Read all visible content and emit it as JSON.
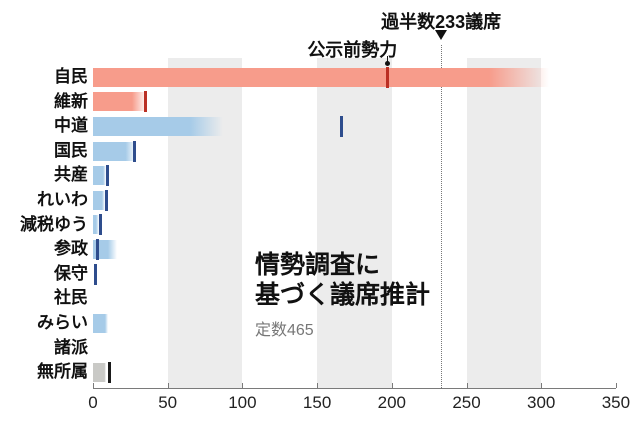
{
  "annotations": {
    "majority_label": "過半数233議席",
    "pre_election_label": "公示前勢力"
  },
  "title": {
    "line1": "情勢調査に",
    "line2": "基づく議席推計",
    "subtitle": "定数465"
  },
  "chart_data": {
    "type": "bar",
    "orientation": "horizontal",
    "title": "情勢調査に基づく議席推計",
    "subtitle": "定数465",
    "xlim": [
      0,
      350
    ],
    "x_ticks": [
      0,
      50,
      100,
      150,
      200,
      250,
      300,
      350
    ],
    "majority_line": 233,
    "shaded_bands": [
      [
        50,
        100
      ],
      [
        150,
        200
      ],
      [
        250,
        300
      ]
    ],
    "colors": {
      "bar_red": "#f79c8b",
      "bar_blue": "#a6cbe8",
      "bar_gray": "#c9c9c6",
      "tick_red": "#bb2f24",
      "tick_blue": "#2e4d8d",
      "tick_gray": "#1a1a1a",
      "band": "#ececec"
    },
    "parties": [
      {
        "label": "自民",
        "color": "red",
        "estimate_solid": 265,
        "estimate_max": 305,
        "pre_seats": 197
      },
      {
        "label": "維新",
        "color": "red",
        "estimate_solid": 26,
        "estimate_max": 36,
        "pre_seats": 35
      },
      {
        "label": "中道",
        "color": "blue",
        "estimate_solid": 65,
        "estimate_max": 87,
        "pre_seats": 166
      },
      {
        "label": "国民",
        "color": "blue",
        "estimate_solid": 22,
        "estimate_max": 29,
        "pre_seats": 28
      },
      {
        "label": "共産",
        "color": "blue",
        "estimate_solid": 7,
        "estimate_max": 9,
        "pre_seats": 10
      },
      {
        "label": "れいわ",
        "color": "blue",
        "estimate_solid": 6,
        "estimate_max": 8,
        "pre_seats": 9
      },
      {
        "label": "減税ゆう",
        "color": "blue",
        "estimate_solid": 2,
        "estimate_max": 4,
        "pre_seats": 5
      },
      {
        "label": "参政",
        "color": "blue",
        "estimate_solid": 10,
        "estimate_max": 16,
        "pre_seats": 3
      },
      {
        "label": "保守",
        "color": "blue",
        "estimate_solid": 0,
        "estimate_max": 0,
        "pre_seats": 2
      },
      {
        "label": "社民",
        "color": "blue",
        "estimate_solid": 0,
        "estimate_max": 0,
        "pre_seats": null
      },
      {
        "label": "みらい",
        "color": "blue",
        "estimate_solid": 8,
        "estimate_max": 10,
        "pre_seats": null
      },
      {
        "label": "諸派",
        "color": "blue",
        "estimate_solid": 0,
        "estimate_max": 0,
        "pre_seats": null
      },
      {
        "label": "無所属",
        "color": "gray",
        "estimate_solid": 8,
        "estimate_max": 9,
        "pre_seats": 11
      }
    ]
  }
}
